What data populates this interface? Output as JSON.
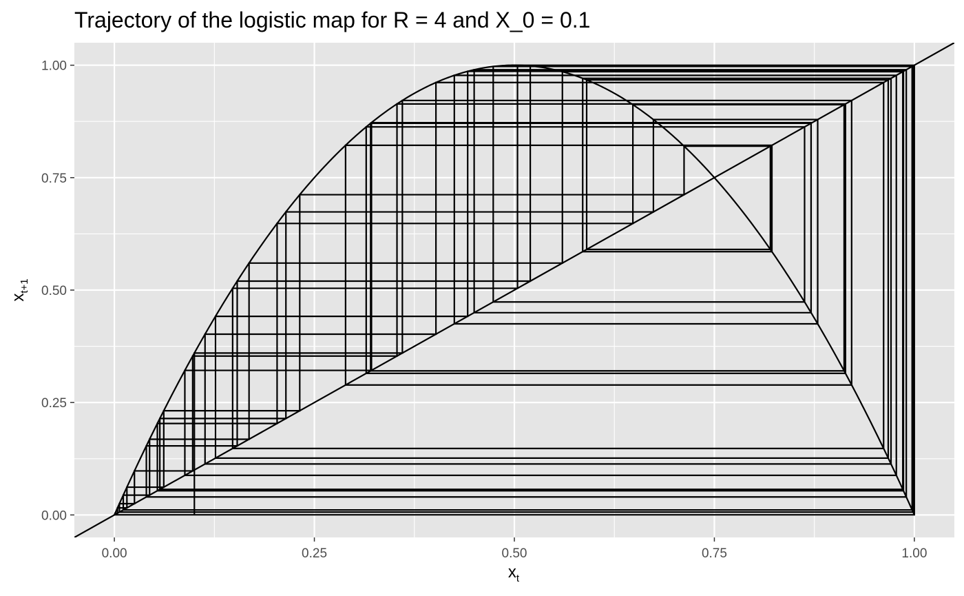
{
  "chart_data": {
    "type": "line",
    "title": "Trajectory of the logistic map for R = 4 and X_0 = 0.1",
    "xlabel": {
      "base": "x",
      "subscript": "t"
    },
    "ylabel": {
      "base": "x",
      "subscript": "t+1"
    },
    "xlim": [
      -0.05,
      1.05
    ],
    "ylim": [
      -0.05,
      1.05
    ],
    "x_ticks": [
      {
        "value": 0.0,
        "label": "0.00"
      },
      {
        "value": 0.25,
        "label": "0.25"
      },
      {
        "value": 0.5,
        "label": "0.50"
      },
      {
        "value": 0.75,
        "label": "0.75"
      },
      {
        "value": 1.0,
        "label": "1.00"
      }
    ],
    "y_ticks": [
      {
        "value": 0.0,
        "label": "0.00"
      },
      {
        "value": 0.25,
        "label": "0.25"
      },
      {
        "value": 0.5,
        "label": "0.50"
      },
      {
        "value": 0.75,
        "label": "0.75"
      },
      {
        "value": 1.0,
        "label": "1.00"
      }
    ],
    "minor_grid": [
      0.125,
      0.375,
      0.625,
      0.875
    ],
    "grid": true,
    "panel_background": "#e5e5e5",
    "grid_color": "#ffffff",
    "line_color": "#000000",
    "map": {
      "r": 4,
      "x0": 0.1,
      "iterations": 60
    },
    "series": [
      {
        "kind": "curve",
        "formula": "y = 4 x (1 - x)",
        "domain": [
          0,
          1
        ]
      },
      {
        "kind": "identity",
        "formula": "y = x"
      },
      {
        "kind": "cobweb"
      }
    ]
  }
}
